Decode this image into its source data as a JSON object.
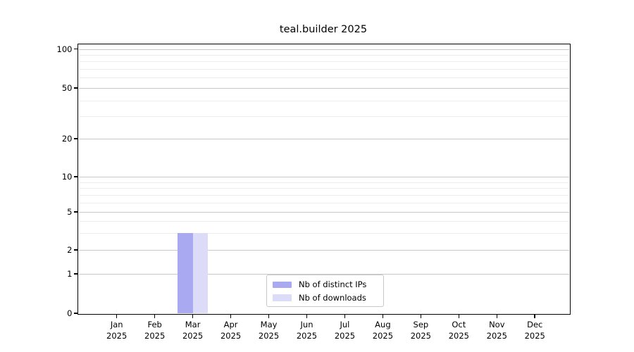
{
  "chart_data": {
    "type": "bar",
    "title": "teal.builder 2025",
    "x": {
      "categories": [
        "Jan",
        "Feb",
        "Mar",
        "Apr",
        "May",
        "Jun",
        "Jul",
        "Aug",
        "Sep",
        "Oct",
        "Nov",
        "Dec"
      ],
      "year_label": "2025"
    },
    "y_axis": {
      "scale": "log (with 0 baseline)",
      "major_ticks": [
        100,
        50,
        20,
        10,
        5,
        2,
        1,
        0
      ],
      "minor_gridlines": [
        90,
        80,
        70,
        60,
        40,
        30,
        9,
        8,
        7,
        6,
        4,
        3
      ],
      "ylim": [
        0,
        110
      ]
    },
    "series": [
      {
        "name": "Nb of distinct IPs",
        "color": "#a9a9f2",
        "values": [
          0,
          0,
          3,
          0,
          0,
          0,
          0,
          0,
          0,
          0,
          0,
          0
        ]
      },
      {
        "name": "Nb of downloads",
        "color": "#dcdcf8",
        "values": [
          0,
          0,
          3,
          0,
          0,
          0,
          0,
          0,
          0,
          0,
          0,
          0
        ]
      }
    ],
    "legend": {
      "entries": [
        {
          "label": "Nb of distinct IPs",
          "color": "#a9a9f2"
        },
        {
          "label": "Nb of downloads",
          "color": "#dcdcf8"
        }
      ],
      "position": "inside-bottom-center"
    },
    "grid": {
      "horizontal": true
    }
  },
  "colors": {
    "background": "#ffffff",
    "axis": "#000000",
    "text": "#000000",
    "grid_major": "#c9c9c9",
    "grid_minor": "#ededed",
    "legend_border": "#c9c9c9"
  }
}
